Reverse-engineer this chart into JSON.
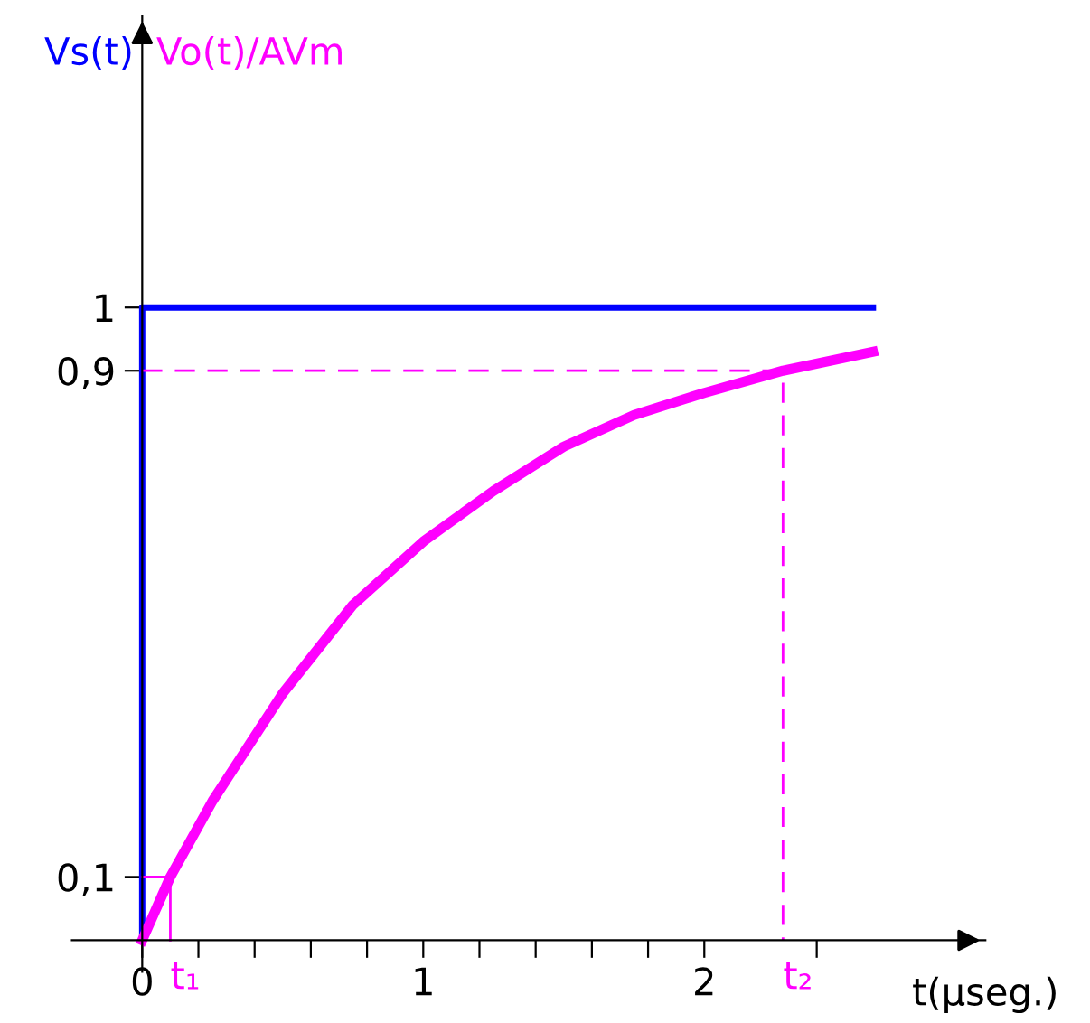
{
  "chart_data": {
    "type": "line",
    "xlabel": "t(μseg.)",
    "xlim": [
      -0.25,
      3.0
    ],
    "ylim": [
      -0.05,
      1.46
    ],
    "annotations": [
      {
        "text": "t₁",
        "x": 0.1,
        "y": 0
      },
      {
        "text": "t₂",
        "x": 2.28,
        "y": 0
      }
    ],
    "xticks": [
      {
        "value": 0,
        "label": "0"
      },
      {
        "value": 0.2,
        "label": null
      },
      {
        "value": 0.4,
        "label": null
      },
      {
        "value": 0.6,
        "label": null
      },
      {
        "value": 0.8,
        "label": null
      },
      1,
      {
        "value": 1.2,
        "label": null
      },
      {
        "value": 1.4,
        "label": null
      },
      {
        "value": 1.6,
        "label": null
      },
      {
        "value": 1.8,
        "label": null
      },
      2,
      {
        "value": 2.4,
        "label": null
      }
    ],
    "yticks": [
      {
        "value": 0.1,
        "label": "0,1"
      },
      {
        "value": 0.9,
        "label": "0,9"
      },
      1
    ],
    "grid": false,
    "marker": "none",
    "series": [
      {
        "name": "Vs(t)",
        "color": "#0000ff",
        "x": [
          0,
          0,
          2.6
        ],
        "values": [
          0,
          1,
          1
        ],
        "line_style": "solid"
      },
      {
        "name": "Vo(t)/AVm",
        "color": "#ff00ff",
        "x": [
          0,
          0.1,
          0.25,
          0.5,
          0.75,
          1.0,
          1.25,
          1.5,
          1.75,
          2.0,
          2.28,
          2.6
        ],
        "values": [
          0,
          0.1,
          0.22,
          0.39,
          0.53,
          0.63,
          0.71,
          0.78,
          0.83,
          0.865,
          0.9,
          0.93
        ],
        "line_style": "solid"
      },
      {
        "color": "#ff00ff",
        "x": [
          0,
          2.28,
          2.28
        ],
        "values": [
          0.9,
          0.9,
          0
        ],
        "line_style": "dashed"
      },
      {
        "color": "#ff00ff",
        "x": [
          0,
          0.1,
          0.1
        ],
        "values": [
          0.1,
          0.1,
          0
        ],
        "line_style": "solid"
      }
    ]
  }
}
